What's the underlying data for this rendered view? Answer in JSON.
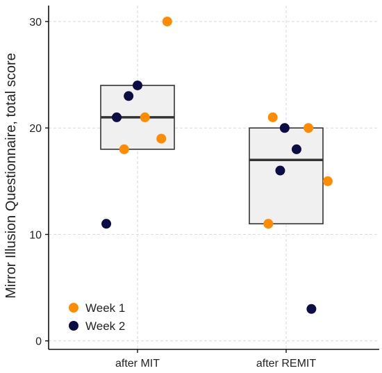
{
  "chart_data": {
    "type": "scatter",
    "subtype": "box-with-jittered-points",
    "title": "",
    "xlabel": "",
    "ylabel": "Mirror Illusion Questionnaire, total score",
    "categories": [
      "after MIT",
      "after REMIT"
    ],
    "ylim": [
      -0.8,
      31.5
    ],
    "yticks": [
      0,
      10,
      20,
      30
    ],
    "grid": true,
    "legend_position": "bottom-left",
    "boxes": [
      {
        "category": "after MIT",
        "q1": 18,
        "median": 21,
        "q3": 24
      },
      {
        "category": "after REMIT",
        "q1": 11,
        "median": 17,
        "q3": 20
      }
    ],
    "series": [
      {
        "name": "Week 1",
        "color": "#ff8c00",
        "points": [
          {
            "category": "after MIT",
            "x_jitter": 0.2,
            "y": 30
          },
          {
            "category": "after MIT",
            "x_jitter": 0.05,
            "y": 21
          },
          {
            "category": "after MIT",
            "x_jitter": 0.16,
            "y": 19
          },
          {
            "category": "after MIT",
            "x_jitter": -0.09,
            "y": 18
          },
          {
            "category": "after REMIT",
            "x_jitter": -0.09,
            "y": 21
          },
          {
            "category": "after REMIT",
            "x_jitter": 0.15,
            "y": 20
          },
          {
            "category": "after REMIT",
            "x_jitter": 0.28,
            "y": 15
          },
          {
            "category": "after REMIT",
            "x_jitter": -0.12,
            "y": 11
          }
        ]
      },
      {
        "name": "Week 2",
        "color": "#0d0d45",
        "points": [
          {
            "category": "after MIT",
            "x_jitter": 0.0,
            "y": 24
          },
          {
            "category": "after MIT",
            "x_jitter": -0.06,
            "y": 23
          },
          {
            "category": "after MIT",
            "x_jitter": -0.14,
            "y": 21
          },
          {
            "category": "after MIT",
            "x_jitter": -0.21,
            "y": 11
          },
          {
            "category": "after REMIT",
            "x_jitter": -0.01,
            "y": 20
          },
          {
            "category": "after REMIT",
            "x_jitter": 0.07,
            "y": 18
          },
          {
            "category": "after REMIT",
            "x_jitter": -0.04,
            "y": 16
          },
          {
            "category": "after REMIT",
            "x_jitter": 0.17,
            "y": 3
          }
        ]
      }
    ]
  }
}
